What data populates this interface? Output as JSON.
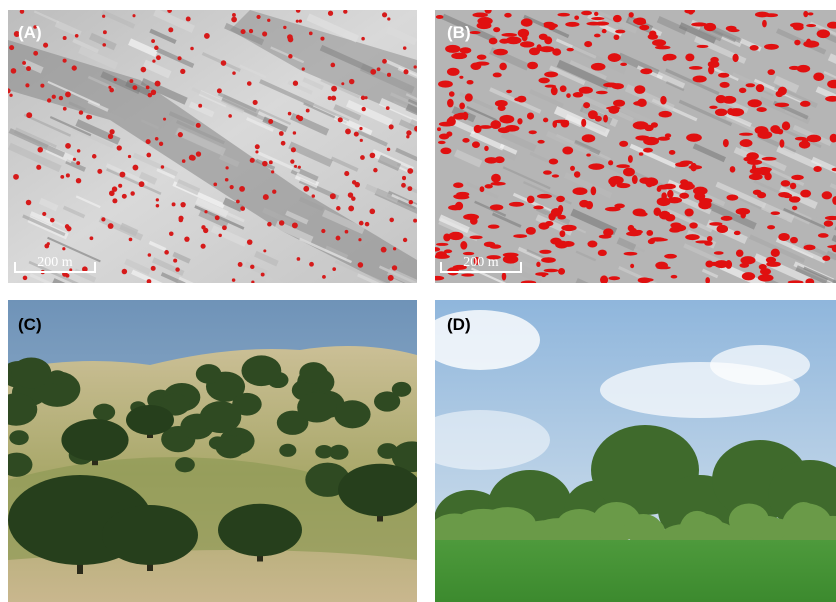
{
  "panels": [
    {
      "label": "(A)",
      "scale_bar": "200 m"
    },
    {
      "label": "(B)",
      "scale_bar": "200 m"
    },
    {
      "label": "(C)"
    },
    {
      "label": "(D)"
    }
  ]
}
